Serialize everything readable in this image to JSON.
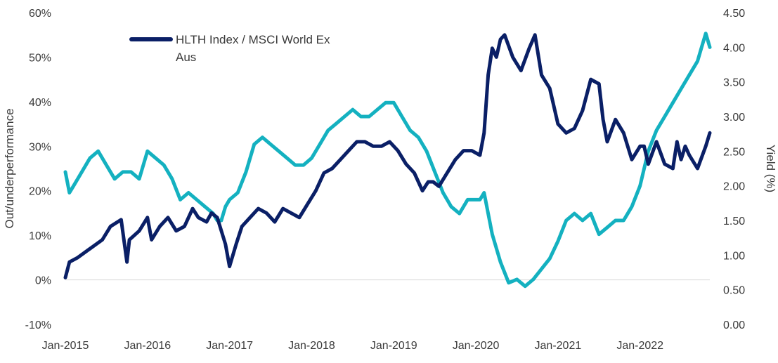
{
  "chart_data": {
    "type": "line",
    "y_left": {
      "label": "Out/underperformance",
      "ticks": [
        "-10%",
        "0%",
        "10%",
        "20%",
        "30%",
        "40%",
        "50%",
        "60%"
      ],
      "range": [
        -10,
        60
      ]
    },
    "y_right": {
      "label": "Yield (%)",
      "ticks": [
        "0.00",
        "0.50",
        "1.00",
        "1.50",
        "2.00",
        "2.50",
        "3.00",
        "3.50",
        "4.00",
        "4.50"
      ],
      "range": [
        0,
        4.5
      ]
    },
    "x_axis": {
      "ticks": [
        "Jan-2015",
        "Jan-2016",
        "Jan-2017",
        "Jan-2018",
        "Jan-2019",
        "Jan-2020",
        "Jan-2021",
        "Jan-2022"
      ],
      "range": [
        2015.0,
        2022.85
      ]
    },
    "legend": {
      "position": "top-left",
      "entries": [
        {
          "label_line1": "HLTH Index / MSCI World Ex",
          "label_line2": "Aus",
          "color": "#0a1f66"
        }
      ]
    },
    "series": [
      {
        "name": "HLTH Index / MSCI World Ex Aus",
        "axis": "left",
        "color": "#0a1f66",
        "x": [
          2015.0,
          2015.05,
          2015.15,
          2015.3,
          2015.45,
          2015.55,
          2015.68,
          2015.75,
          2015.78,
          2015.9,
          2016.0,
          2016.05,
          2016.15,
          2016.25,
          2016.35,
          2016.45,
          2016.55,
          2016.62,
          2016.72,
          2016.78,
          2016.85,
          2016.95,
          2017.0,
          2017.08,
          2017.15,
          2017.25,
          2017.35,
          2017.45,
          2017.55,
          2017.65,
          2017.75,
          2017.85,
          2017.95,
          2018.05,
          2018.15,
          2018.25,
          2018.35,
          2018.45,
          2018.55,
          2018.65,
          2018.75,
          2018.85,
          2018.95,
          2019.05,
          2019.15,
          2019.25,
          2019.35,
          2019.42,
          2019.48,
          2019.55,
          2019.65,
          2019.75,
          2019.85,
          2019.95,
          2020.05,
          2020.1,
          2020.15,
          2020.2,
          2020.25,
          2020.3,
          2020.35,
          2020.45,
          2020.55,
          2020.65,
          2020.72,
          2020.8,
          2020.9,
          2021.0,
          2021.1,
          2021.2,
          2021.3,
          2021.4,
          2021.5,
          2021.55,
          2021.6,
          2021.7,
          2021.8,
          2021.9,
          2022.0,
          2022.05,
          2022.1,
          2022.2,
          2022.3,
          2022.4,
          2022.45,
          2022.5,
          2022.55,
          2022.6,
          2022.7,
          2022.8,
          2022.85
        ],
        "y": [
          0.5,
          4,
          5,
          7,
          9,
          12,
          13.5,
          4,
          9,
          11,
          14,
          9,
          12,
          14,
          11,
          12,
          16,
          14,
          13,
          15,
          14,
          8,
          3,
          8,
          12,
          14,
          16,
          15,
          13,
          16,
          15,
          14,
          17,
          20,
          24,
          25,
          27,
          29,
          31,
          31,
          30,
          30,
          31,
          29,
          26,
          24,
          20,
          22,
          22,
          21,
          24,
          27,
          29,
          29,
          28,
          33,
          46,
          52,
          50,
          54,
          55,
          50,
          47,
          52,
          55,
          46,
          43,
          35,
          33,
          34,
          38,
          45,
          44,
          36,
          31,
          36,
          33,
          27,
          30,
          30,
          26,
          31,
          26,
          25,
          31,
          27,
          30,
          28,
          25,
          30,
          33
        ]
      },
      {
        "name": "Yield (%)",
        "axis": "right",
        "color": "#14b1c0",
        "x": [
          2015.0,
          2015.05,
          2015.1,
          2015.2,
          2015.3,
          2015.4,
          2015.5,
          2015.6,
          2015.7,
          2015.8,
          2015.9,
          2016.0,
          2016.1,
          2016.2,
          2016.3,
          2016.4,
          2016.5,
          2016.6,
          2016.7,
          2016.8,
          2016.85,
          2016.9,
          2016.95,
          2017.0,
          2017.1,
          2017.2,
          2017.3,
          2017.4,
          2017.5,
          2017.6,
          2017.7,
          2017.8,
          2017.9,
          2018.0,
          2018.1,
          2018.2,
          2018.3,
          2018.4,
          2018.5,
          2018.6,
          2018.7,
          2018.8,
          2018.9,
          2019.0,
          2019.1,
          2019.2,
          2019.3,
          2019.4,
          2019.5,
          2019.6,
          2019.7,
          2019.8,
          2019.9,
          2020.0,
          2020.05,
          2020.1,
          2020.15,
          2020.2,
          2020.3,
          2020.4,
          2020.5,
          2020.6,
          2020.7,
          2020.8,
          2020.9,
          2021.0,
          2021.1,
          2021.2,
          2021.3,
          2021.4,
          2021.5,
          2021.6,
          2021.7,
          2021.8,
          2021.9,
          2022.0,
          2022.1,
          2022.2,
          2022.3,
          2022.4,
          2022.5,
          2022.6,
          2022.7,
          2022.75,
          2022.8,
          2022.85
        ],
        "y": [
          2.2,
          1.9,
          2.0,
          2.2,
          2.4,
          2.5,
          2.3,
          2.1,
          2.2,
          2.2,
          2.1,
          2.5,
          2.4,
          2.3,
          2.1,
          1.8,
          1.9,
          1.8,
          1.7,
          1.6,
          1.5,
          1.5,
          1.7,
          1.8,
          1.9,
          2.2,
          2.6,
          2.7,
          2.6,
          2.5,
          2.4,
          2.3,
          2.3,
          2.4,
          2.6,
          2.8,
          2.9,
          3.0,
          3.1,
          3.0,
          3.0,
          3.1,
          3.2,
          3.2,
          3.0,
          2.8,
          2.7,
          2.5,
          2.2,
          1.9,
          1.7,
          1.6,
          1.8,
          1.8,
          1.8,
          1.9,
          1.6,
          1.3,
          0.9,
          0.6,
          0.65,
          0.55,
          0.65,
          0.8,
          0.95,
          1.2,
          1.5,
          1.6,
          1.5,
          1.6,
          1.3,
          1.4,
          1.5,
          1.5,
          1.7,
          2.0,
          2.5,
          2.8,
          3.0,
          3.2,
          3.4,
          3.6,
          3.8,
          4.0,
          4.2,
          4.0
        ]
      }
    ],
    "grid": false,
    "zero_line": true
  }
}
